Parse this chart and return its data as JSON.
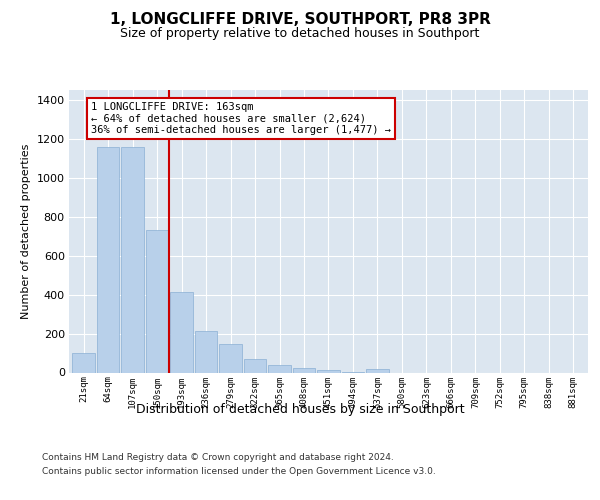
{
  "title": "1, LONGCLIFFE DRIVE, SOUTHPORT, PR8 3PR",
  "subtitle": "Size of property relative to detached houses in Southport",
  "xlabel": "Distribution of detached houses by size in Southport",
  "ylabel": "Number of detached properties",
  "categories": [
    "21sqm",
    "64sqm",
    "107sqm",
    "150sqm",
    "193sqm",
    "236sqm",
    "279sqm",
    "322sqm",
    "365sqm",
    "408sqm",
    "451sqm",
    "494sqm",
    "537sqm",
    "580sqm",
    "623sqm",
    "666sqm",
    "709sqm",
    "752sqm",
    "795sqm",
    "838sqm",
    "881sqm"
  ],
  "values": [
    100,
    1160,
    1160,
    730,
    415,
    215,
    145,
    70,
    40,
    25,
    13,
    5,
    20,
    0,
    0,
    0,
    0,
    0,
    0,
    0,
    0
  ],
  "bar_color": "#b8d0ea",
  "bar_edge_color": "#8aafd4",
  "marker_line_color": "#cc0000",
  "marker_bin": 3,
  "annotation_text_line1": "1 LONGCLIFFE DRIVE: 163sqm",
  "annotation_text_line2": "← 64% of detached houses are smaller (2,624)",
  "annotation_text_line3": "36% of semi-detached houses are larger (1,477) →",
  "ylim": [
    0,
    1450
  ],
  "yticks": [
    0,
    200,
    400,
    600,
    800,
    1000,
    1200,
    1400
  ],
  "footer_line1": "Contains HM Land Registry data © Crown copyright and database right 2024.",
  "footer_line2": "Contains public sector information licensed under the Open Government Licence v3.0.",
  "plot_bg_color": "#dce6f0",
  "title_fontsize": 11,
  "subtitle_fontsize": 9,
  "ylabel_fontsize": 8,
  "xlabel_fontsize": 9,
  "ytick_fontsize": 8,
  "xtick_fontsize": 6.5
}
